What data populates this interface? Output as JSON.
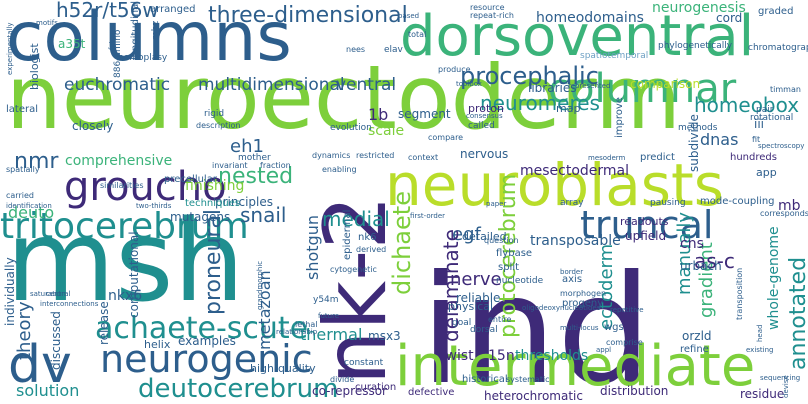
{
  "palette": {
    "c1": "#3e2a78",
    "c2": "#2d5e8c",
    "c3": "#1f8f8f",
    "c4": "#3bb37a",
    "c5": "#7dcf3b",
    "c6": "#b9dd2a",
    "c7": "#d8e2a0",
    "c8": "#9fd6c8",
    "c9": "#6ea0c4"
  },
  "words": [
    {
      "text": "neuroectoderm"
    },
    {
      "text": "columns"
    },
    {
      "text": "msh"
    },
    {
      "text": "ind"
    },
    {
      "text": "nk-2"
    },
    {
      "text": "dorsoventral"
    },
    {
      "text": "neuroblasts"
    },
    {
      "text": "intermediate"
    },
    {
      "text": "columnar"
    },
    {
      "text": "groucho"
    },
    {
      "text": "dv"
    },
    {
      "text": "neurogenic"
    },
    {
      "text": "achaete-scute"
    },
    {
      "text": "tritocerebrum"
    },
    {
      "text": "truncal"
    },
    {
      "text": "deutocerebrum"
    },
    {
      "text": "procephalic"
    },
    {
      "text": "three-dimensional"
    },
    {
      "text": "h52r/t56w"
    },
    {
      "text": "euchromatic"
    },
    {
      "text": "multidimensional"
    },
    {
      "text": "ventral"
    },
    {
      "text": "neuromeres"
    },
    {
      "text": "homeobox"
    },
    {
      "text": "homeodomains"
    },
    {
      "text": "neurogenesis"
    },
    {
      "text": "nested"
    },
    {
      "text": "dichaete"
    },
    {
      "text": "protocerebrum"
    },
    {
      "text": "annotated"
    },
    {
      "text": "medial"
    },
    {
      "text": "snail"
    },
    {
      "text": "proneural"
    },
    {
      "text": "egf"
    },
    {
      "text": "delaminate"
    },
    {
      "text": "ectoderm"
    },
    {
      "text": "gradient"
    },
    {
      "text": "as-c"
    },
    {
      "text": "nerve"
    },
    {
      "text": "thermal"
    },
    {
      "text": "theory"
    },
    {
      "text": "solution"
    },
    {
      "text": "eh1"
    },
    {
      "text": "dnas"
    },
    {
      "text": "manually"
    },
    {
      "text": "comprehensive"
    },
    {
      "text": "finishing"
    },
    {
      "text": "nmr"
    },
    {
      "text": "deuto"
    },
    {
      "text": "thresholds"
    },
    {
      "text": "15n"
    },
    {
      "text": "nkx6"
    },
    {
      "text": "metazoan"
    },
    {
      "text": "shotgun"
    },
    {
      "text": "twist"
    },
    {
      "text": "cns"
    },
    {
      "text": "urbach"
    },
    {
      "text": "whole-genome"
    },
    {
      "text": "mesectodermal"
    },
    {
      "text": "nervous"
    },
    {
      "text": "transposable"
    },
    {
      "text": "upfield"
    },
    {
      "text": "readouts"
    },
    {
      "text": "detailed"
    },
    {
      "text": "reliable"
    },
    {
      "text": "physical"
    },
    {
      "text": "orzld"
    },
    {
      "text": "msx3"
    },
    {
      "text": "examples"
    },
    {
      "text": "helix"
    },
    {
      "text": "high-quality"
    },
    {
      "text": "co-repressor"
    },
    {
      "text": "curation"
    },
    {
      "text": "defective"
    },
    {
      "text": "heterochromatic"
    },
    {
      "text": "distribution"
    },
    {
      "text": "residue"
    },
    {
      "text": "mutagens"
    },
    {
      "text": "discussed"
    },
    {
      "text": "individually"
    },
    {
      "text": "computational"
    },
    {
      "text": "release"
    },
    {
      "text": "principles"
    },
    {
      "text": "techniques"
    },
    {
      "text": "mb"
    },
    {
      "text": "cord"
    },
    {
      "text": "graded"
    },
    {
      "text": "1b"
    },
    {
      "text": "scale"
    },
    {
      "text": "segment"
    },
    {
      "text": "a35t"
    },
    {
      "text": "biologist"
    },
    {
      "text": "lateral"
    },
    {
      "text": "closely"
    },
    {
      "text": "arranged"
    },
    {
      "text": "libraries"
    },
    {
      "text": "comparison"
    },
    {
      "text": "spatiotemporal"
    },
    {
      "text": "phylogenetically"
    },
    {
      "text": "chromatography"
    },
    {
      "text": "proton"
    },
    {
      "text": "map"
    },
    {
      "text": "methods"
    },
    {
      "text": "improve"
    },
    {
      "text": "subdivide"
    },
    {
      "text": "iii"
    },
    {
      "text": "hundreds"
    },
    {
      "text": "predict"
    },
    {
      "text": "app"
    },
    {
      "text": "mode-coupling"
    },
    {
      "text": "corresponds"
    },
    {
      "text": "array"
    },
    {
      "text": "pausing"
    },
    {
      "text": "flybase"
    },
    {
      "text": "split"
    },
    {
      "text": "nucleotide"
    },
    {
      "text": "question"
    },
    {
      "text": "derived"
    },
    {
      "text": "nk6"
    },
    {
      "text": "y54m"
    },
    {
      "text": "cytogenetic"
    },
    {
      "text": "epidermal"
    },
    {
      "text": "pair"
    },
    {
      "text": "rotational"
    },
    {
      "text": "timman"
    },
    {
      "text": "spectroscopy"
    },
    {
      "text": "evolution"
    },
    {
      "text": "dynamics"
    },
    {
      "text": "restricted"
    },
    {
      "text": "context"
    },
    {
      "text": "compare"
    },
    {
      "text": "called"
    },
    {
      "text": "consensus"
    },
    {
      "text": "toolbox"
    },
    {
      "text": "produce"
    },
    {
      "text": "represented"
    },
    {
      "text": "elav"
    },
    {
      "text": "nees"
    },
    {
      "text": "total"
    },
    {
      "text": "based"
    },
    {
      "text": "resource"
    },
    {
      "text": "repeat-rich"
    },
    {
      "text": "rigid"
    },
    {
      "text": "description"
    },
    {
      "text": "mother"
    },
    {
      "text": "invariant"
    },
    {
      "text": "fraction"
    },
    {
      "text": "enabling"
    },
    {
      "text": "precellular"
    },
    {
      "text": "similarities"
    },
    {
      "text": "two-thirds"
    },
    {
      "text": "identification"
    },
    {
      "text": "carried"
    },
    {
      "text": "spatially"
    },
    {
      "text": "motifs"
    },
    {
      "text": "experimentally"
    },
    {
      "text": "fates"
    },
    {
      "text": "homoplasy"
    },
    {
      "text": "886-amino"
    },
    {
      "text": "longitudinal"
    },
    {
      "text": "mhz"
    },
    {
      "text": "interconnections"
    },
    {
      "text": "saturation"
    },
    {
      "text": "central"
    },
    {
      "text": "grandmorphic"
    },
    {
      "text": "future"
    },
    {
      "text": "lethal"
    },
    {
      "text": "relationship"
    },
    {
      "text": "divide"
    },
    {
      "text": "constant"
    },
    {
      "text": "historical"
    },
    {
      "text": "systematic"
    },
    {
      "text": "goal"
    },
    {
      "text": "dorsal"
    },
    {
      "text": "entire"
    },
    {
      "text": "axis"
    },
    {
      "text": "morphogen"
    },
    {
      "text": "oligodeoxynucleotides"
    },
    {
      "text": "multi-locus"
    },
    {
      "text": "border"
    },
    {
      "text": "progeny"
    },
    {
      "text": "repetitive"
    },
    {
      "text": "wgs"
    },
    {
      "text": "comprise"
    },
    {
      "text": "appl"
    },
    {
      "text": "refine"
    },
    {
      "text": "existing"
    },
    {
      "text": "sequencing"
    },
    {
      "text": "head"
    },
    {
      "text": "devise"
    },
    {
      "text": "transposition"
    },
    {
      "text": "paper"
    },
    {
      "text": "first-order"
    },
    {
      "text": "mesoderm"
    },
    {
      "text": "fit"
    }
  ]
}
